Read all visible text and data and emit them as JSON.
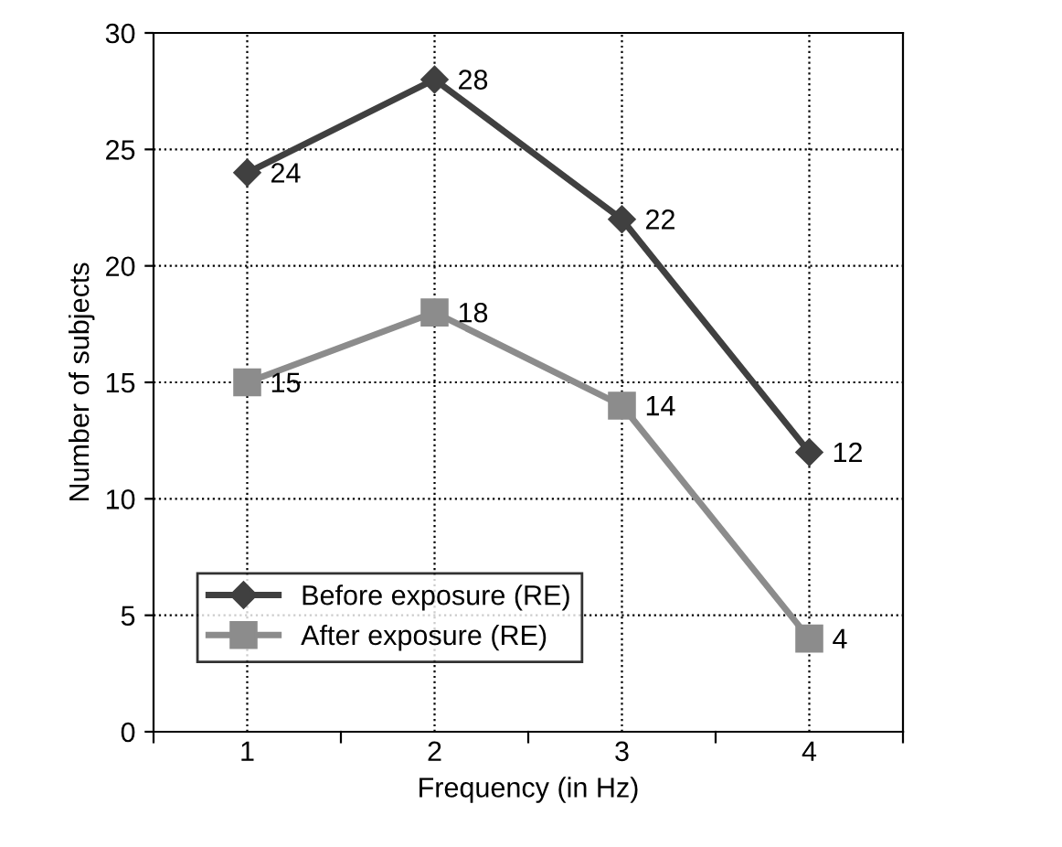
{
  "chart_data": {
    "type": "line",
    "xlabel": "Frequency (in Hz)",
    "ylabel": "Number of subjects",
    "categories": [
      "1",
      "2",
      "3",
      "4"
    ],
    "series": [
      {
        "name": "Before exposure (RE)",
        "color": "#404040",
        "marker": "diamond",
        "values": [
          24,
          28,
          22,
          12
        ]
      },
      {
        "name": "After exposure (RE)",
        "color": "#8c8c8c",
        "marker": "square",
        "values": [
          15,
          18,
          14,
          4
        ]
      }
    ],
    "ylim": [
      0,
      30
    ],
    "yticks": [
      0,
      5,
      10,
      15,
      20,
      25,
      30
    ],
    "grid": true,
    "legend": "bottom left",
    "data_labels": true,
    "line_style": "solid"
  }
}
